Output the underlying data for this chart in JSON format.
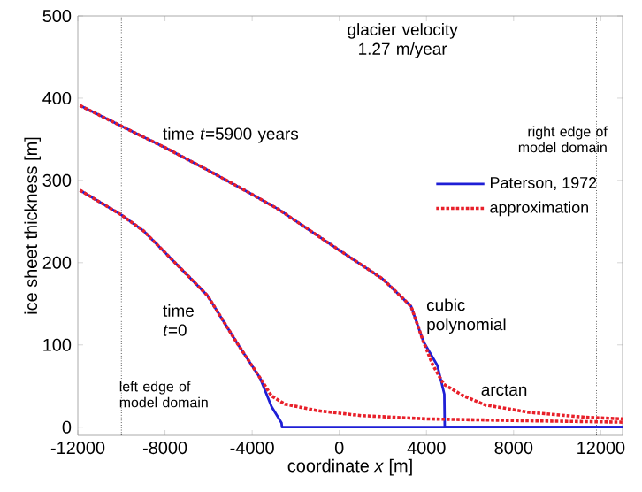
{
  "chart_data": {
    "type": "line",
    "xlabel": "coordinate *x* [m]",
    "ylabel": "ice sheet thickness [m]",
    "xlim": [
      -12000,
      13000
    ],
    "ylim": [
      -10,
      500
    ],
    "xticks": [
      -12000,
      -8000,
      -4000,
      0,
      4000,
      8000,
      12000
    ],
    "yticks": [
      0,
      100,
      200,
      300,
      400,
      500
    ],
    "legend": "right",
    "grid": false,
    "marker": "none",
    "series": [
      {
        "name": "Paterson, 1972",
        "color": "#1f1fd6",
        "line_style": "solid",
        "x": [
          -11900,
          -10000,
          -8000,
          -6000,
          -4000,
          -2800,
          -160,
          2000,
          3290,
          3860,
          4500,
          4820,
          4840,
          13000
        ],
        "values": [
          391,
          366,
          340,
          312,
          283,
          265,
          218,
          180,
          147,
          104,
          75,
          40,
          0,
          0
        ]
      },
      {
        "name": "approximation",
        "color": "#e8202a",
        "line_style": "dotted",
        "x": [
          -11900,
          -10000,
          -8000,
          -6000,
          -4000,
          -2800,
          -160,
          2000,
          3290,
          3860,
          4300,
          4800,
          5700,
          6700,
          8700,
          11300,
          13000
        ],
        "values": [
          391,
          366,
          340,
          312,
          283,
          265,
          218,
          180,
          147,
          104,
          75,
          52,
          38,
          27,
          18,
          12,
          10
        ]
      },
      {
        "color": "#1f1fd6",
        "line_style": "solid",
        "x": [
          -11900,
          -10000,
          -9000,
          -7390,
          -6050,
          -4710,
          -3640,
          -3110,
          -2650,
          -2630,
          13000
        ],
        "values": [
          288,
          258,
          239,
          196,
          160,
          103,
          60,
          25,
          5,
          0,
          0
        ]
      },
      {
        "color": "#e8202a",
        "line_style": "dotted",
        "x": [
          -11900,
          -10000,
          -9000,
          -7390,
          -6050,
          -4710,
          -3640,
          -3110,
          -2500,
          -1000,
          1000,
          4000,
          8000,
          13000
        ],
        "values": [
          288,
          258,
          239,
          196,
          160,
          103,
          60,
          38,
          28,
          20,
          14,
          10,
          8,
          6
        ]
      }
    ],
    "ref_lines": [
      {
        "axis": "x",
        "value": -10000,
        "color": "#000000",
        "line_style": "dotted"
      },
      {
        "axis": "x",
        "value": 11800,
        "color": "#000000",
        "line_style": "dotted"
      }
    ],
    "annotations": [
      "glacier velocity 1.27 m/year",
      "time *t*=5900 years",
      "time *t*=0",
      "right edge of model domain",
      "left edge of model domain",
      "cubic polynomial",
      "arctan"
    ]
  }
}
